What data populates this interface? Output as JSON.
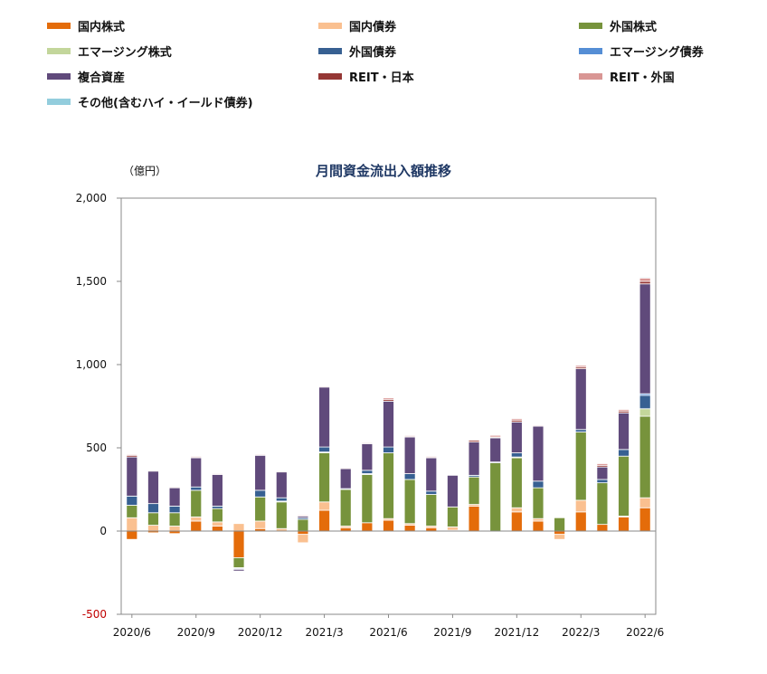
{
  "chart_data": {
    "type": "bar",
    "stacked": true,
    "title": "月間資金流出入額推移",
    "unit": "（億円）",
    "xlabel": "",
    "ylabel": "",
    "ylim": [
      -500,
      2000
    ],
    "yticks": [
      -500,
      0,
      500,
      1000,
      1500,
      2000
    ],
    "ytick_labels": [
      "-500",
      "0",
      "500",
      "1,000",
      "1,500",
      "2,000"
    ],
    "grid": false,
    "legend_position": "top",
    "categories": [
      "2020/6",
      "2020/7",
      "2020/8",
      "2020/9",
      "2020/10",
      "2020/11",
      "2020/12",
      "2021/1",
      "2021/2",
      "2021/3",
      "2021/4",
      "2021/5",
      "2021/6",
      "2021/7",
      "2021/8",
      "2021/9",
      "2021/10",
      "2021/11",
      "2021/12",
      "2022/1",
      "2022/2",
      "2022/3",
      "2022/4",
      "2022/5",
      "2022/6"
    ],
    "x_labels": [
      {
        "index": 0,
        "text": "2020/6"
      },
      {
        "index": 3,
        "text": "2020/9"
      },
      {
        "index": 6,
        "text": "2020/12"
      },
      {
        "index": 9,
        "text": "2021/3"
      },
      {
        "index": 12,
        "text": "2021/6"
      },
      {
        "index": 15,
        "text": "2021/9"
      },
      {
        "index": 18,
        "text": "2021/12"
      },
      {
        "index": 21,
        "text": "2022/3"
      },
      {
        "index": 24,
        "text": "2022/6"
      }
    ],
    "series": [
      {
        "name": "国内株式",
        "color": "#e46c0a",
        "values": [
          -50,
          -10,
          -15,
          60,
          30,
          -160,
          15,
          0,
          -20,
          125,
          20,
          50,
          65,
          35,
          20,
          5,
          150,
          0,
          115,
          60,
          -20,
          115,
          40,
          85,
          140
        ]
      },
      {
        "name": "国内債券",
        "color": "#fac090",
        "values": [
          80,
          35,
          30,
          25,
          25,
          45,
          45,
          15,
          -50,
          50,
          10,
          0,
          10,
          10,
          10,
          20,
          10,
          0,
          25,
          15,
          -30,
          70,
          0,
          5,
          60
        ]
      },
      {
        "name": "外国株式",
        "color": "#77933c",
        "values": [
          75,
          75,
          80,
          160,
          80,
          -60,
          145,
          160,
          70,
          295,
          220,
          290,
          395,
          265,
          190,
          120,
          165,
          410,
          300,
          185,
          80,
          410,
          250,
          360,
          490
        ]
      },
      {
        "name": "エマージング株式",
        "color": "#c3d69b",
        "values": [
          0,
          0,
          0,
          0,
          0,
          -5,
          0,
          5,
          0,
          5,
          0,
          5,
          0,
          0,
          0,
          0,
          0,
          0,
          5,
          0,
          0,
          0,
          0,
          0,
          45
        ]
      },
      {
        "name": "外国債券",
        "color": "#376092",
        "values": [
          55,
          55,
          40,
          20,
          15,
          -5,
          40,
          20,
          10,
          30,
          5,
          20,
          35,
          35,
          20,
          0,
          10,
          5,
          25,
          40,
          0,
          15,
          20,
          40,
          80
        ]
      },
      {
        "name": "エマージング債券",
        "color": "#558ed5",
        "values": [
          0,
          0,
          0,
          0,
          0,
          0,
          0,
          0,
          0,
          0,
          0,
          0,
          0,
          0,
          0,
          0,
          0,
          0,
          0,
          0,
          0,
          0,
          0,
          0,
          10
        ]
      },
      {
        "name": "複合資産",
        "color": "#604a7b",
        "values": [
          235,
          195,
          110,
          175,
          190,
          -10,
          210,
          155,
          10,
          360,
          120,
          160,
          275,
          220,
          200,
          190,
          200,
          145,
          185,
          330,
          0,
          365,
          75,
          220,
          660
        ]
      },
      {
        "name": "REIT・日本",
        "color": "#953735",
        "values": [
          10,
          0,
          0,
          5,
          0,
          0,
          0,
          0,
          5,
          0,
          0,
          0,
          10,
          5,
          5,
          0,
          10,
          5,
          10,
          0,
          0,
          10,
          10,
          10,
          15
        ]
      },
      {
        "name": "REIT・外国",
        "color": "#d99694",
        "values": [
          5,
          5,
          5,
          5,
          5,
          0,
          5,
          5,
          5,
          5,
          5,
          5,
          10,
          5,
          5,
          0,
          5,
          10,
          10,
          5,
          0,
          10,
          10,
          10,
          20
        ]
      },
      {
        "name": "その他(含むハイ・イールド債券)",
        "color": "#93cddd",
        "values": [
          0,
          0,
          0,
          0,
          0,
          0,
          0,
          0,
          0,
          0,
          0,
          0,
          0,
          0,
          0,
          0,
          0,
          0,
          0,
          0,
          0,
          0,
          0,
          0,
          5
        ]
      }
    ]
  }
}
